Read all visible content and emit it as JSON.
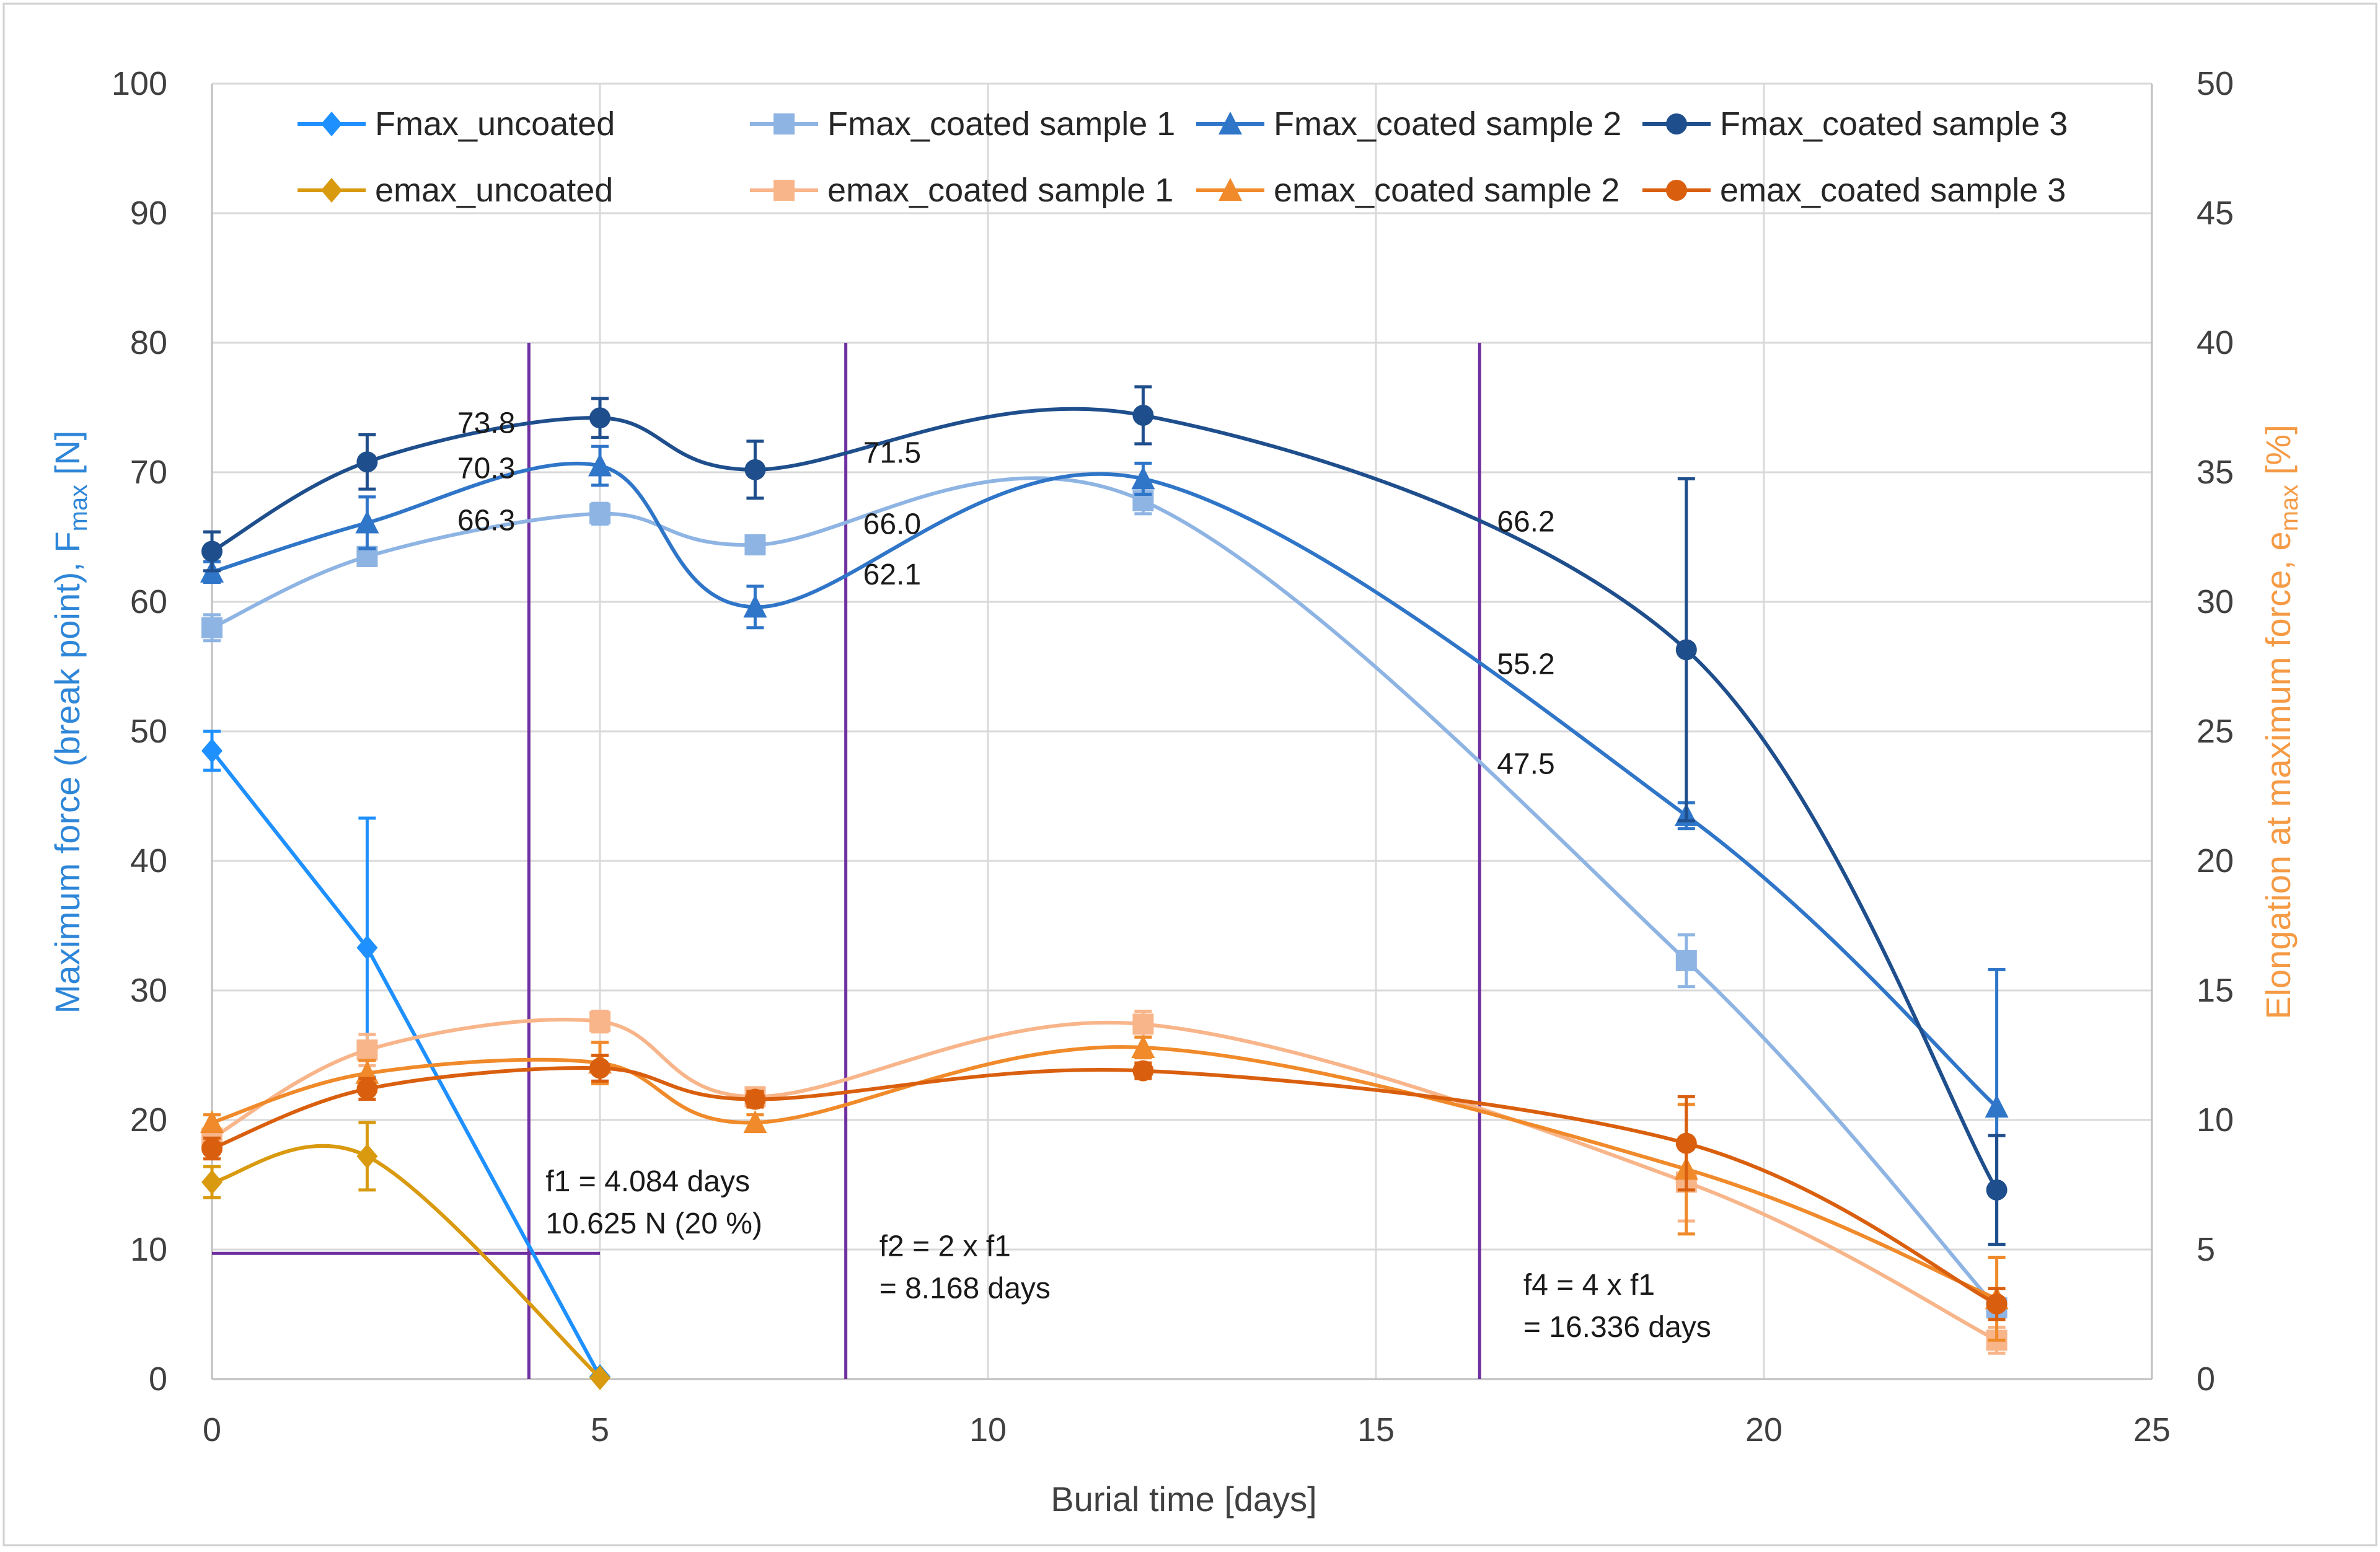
{
  "chart_data": {
    "type": "line",
    "title": "",
    "xlabel": "Burial time [days]",
    "ylabel_left": {
      "main": "Maximum force (break point), F",
      "sub": "max",
      "unit": " [N]"
    },
    "ylabel_right": {
      "main": "Elongation at maximum force, e",
      "sub": "max",
      "unit": " [%]"
    },
    "xlim": [
      0,
      25
    ],
    "ylim_left": [
      0,
      100
    ],
    "ylim_right": [
      0,
      50
    ],
    "x_ticks": [
      "0",
      "5",
      "10",
      "15",
      "20",
      "25"
    ],
    "y_left_ticks": [
      "0",
      "10",
      "20",
      "30",
      "40",
      "50",
      "60",
      "70",
      "80",
      "90",
      "100"
    ],
    "y_right_ticks": [
      "0",
      "5",
      "10",
      "15",
      "20",
      "25",
      "30",
      "35",
      "40",
      "45",
      "50"
    ],
    "grid": true,
    "legend_position": "top",
    "series": [
      {
        "name": "Fmax_uncoated",
        "axis": "left",
        "color": "#1e90ff",
        "marker": "diamond",
        "curve": "straight",
        "x": [
          0,
          2,
          5
        ],
        "y": [
          48.5,
          33.3,
          0.2
        ],
        "err": [
          1.5,
          10,
          0
        ]
      },
      {
        "name": "Fmax_coated sample 1",
        "axis": "left",
        "color": "#8eb4e3",
        "marker": "square",
        "curve": "smooth",
        "x": [
          0,
          2,
          5,
          7,
          12,
          19,
          23
        ],
        "y": [
          58,
          63.5,
          66.8,
          64.4,
          67.8,
          32.3,
          5.5
        ],
        "err": [
          1,
          0.7,
          0.8,
          0.7,
          1,
          2,
          0
        ]
      },
      {
        "name": "Fmax_coated sample 2",
        "axis": "left",
        "color": "#2f75c8",
        "marker": "triangle",
        "curve": "smooth",
        "x": [
          0,
          2,
          5,
          7,
          12,
          19,
          23
        ],
        "y": [
          62.3,
          66.1,
          70.5,
          59.6,
          69.5,
          43.5,
          21
        ],
        "err": [
          0.8,
          2,
          1.5,
          1.6,
          1.2,
          1,
          10.6
        ]
      },
      {
        "name": "Fmax_coated sample 3",
        "axis": "left",
        "color": "#1f4e8c",
        "marker": "circle",
        "curve": "smooth",
        "x": [
          0,
          2,
          5,
          7,
          12,
          19,
          23
        ],
        "y": [
          63.9,
          70.8,
          74.2,
          70.2,
          74.4,
          56.3,
          14.6
        ],
        "err": [
          1.5,
          2.1,
          1.5,
          2.2,
          2.2,
          13.2,
          4.2
        ]
      },
      {
        "name": "emax_uncoated",
        "axis": "right",
        "color": "#d99a0f",
        "marker": "diamond",
        "curve": "smooth",
        "x": [
          0,
          2,
          5
        ],
        "y": [
          7.6,
          8.6,
          0.05
        ],
        "err": [
          0.6,
          1.3,
          0
        ]
      },
      {
        "name": "emax_coated sample 1",
        "axis": "right",
        "color": "#f8b58a",
        "marker": "square",
        "curve": "smooth",
        "x": [
          0,
          2,
          5,
          7,
          12,
          19,
          23
        ],
        "y": [
          9.3,
          12.7,
          13.8,
          10.9,
          13.7,
          7.6,
          1.5
        ],
        "err": [
          0.3,
          0.6,
          0.4,
          0.3,
          0.5,
          1.5,
          0.5
        ]
      },
      {
        "name": "emax_coated sample 2",
        "axis": "right",
        "color": "#f08a2a",
        "marker": "triangle",
        "curve": "smooth",
        "x": [
          0,
          2,
          5,
          7,
          12,
          19,
          23
        ],
        "y": [
          9.9,
          11.8,
          12.2,
          9.9,
          12.8,
          8.1,
          3.1
        ],
        "err": [
          0.3,
          0.5,
          0.8,
          0.3,
          0.4,
          2.5,
          1.6
        ]
      },
      {
        "name": "emax_coated sample 3",
        "axis": "right",
        "color": "#d95f0e",
        "marker": "circle",
        "curve": "smooth",
        "x": [
          0,
          2,
          5,
          7,
          12,
          19,
          23
        ],
        "y": [
          8.9,
          11.2,
          12.0,
          10.8,
          11.9,
          9.1,
          2.9
        ],
        "err": [
          0.4,
          0.4,
          0.5,
          0.3,
          0.3,
          1.8,
          0.6
        ]
      }
    ],
    "vertical_lines": [
      {
        "x": 4.084,
        "color": "#7030a0"
      },
      {
        "x": 8.168,
        "color": "#7030a0"
      },
      {
        "x": 16.336,
        "color": "#7030a0"
      }
    ],
    "threshold_line": {
      "y": 9.7,
      "x_from": 0,
      "x_to": 5,
      "color": "#7030a0"
    },
    "value_labels": [
      {
        "text": "73.8",
        "x": 4.084,
        "y": 73.8
      },
      {
        "text": "70.3",
        "x": 4.084,
        "y": 70.3
      },
      {
        "text": "66.3",
        "x": 4.084,
        "y": 66.3
      },
      {
        "text": "71.5",
        "x": 8.168,
        "y": 71.5
      },
      {
        "text": "66.0",
        "x": 8.168,
        "y": 66.0
      },
      {
        "text": "62.1",
        "x": 8.168,
        "y": 62.1
      },
      {
        "text": "66.2",
        "x": 16.336,
        "y": 66.2
      },
      {
        "text": "55.2",
        "x": 16.336,
        "y": 55.2
      },
      {
        "text": "47.5",
        "x": 16.336,
        "y": 47.5
      }
    ],
    "annotations": [
      {
        "lines": [
          "f1 = 4.084 days",
          "10.625 N (20 %)"
        ],
        "x": 4.3,
        "y": 14.5
      },
      {
        "lines": [
          "f2 = 2 x f1",
          "= 8.168 days"
        ],
        "x": 8.6,
        "y": 9.5
      },
      {
        "lines": [
          "f4 = 4 x f1",
          "= 16.336 days"
        ],
        "x": 16.9,
        "y": 6.5
      }
    ]
  }
}
